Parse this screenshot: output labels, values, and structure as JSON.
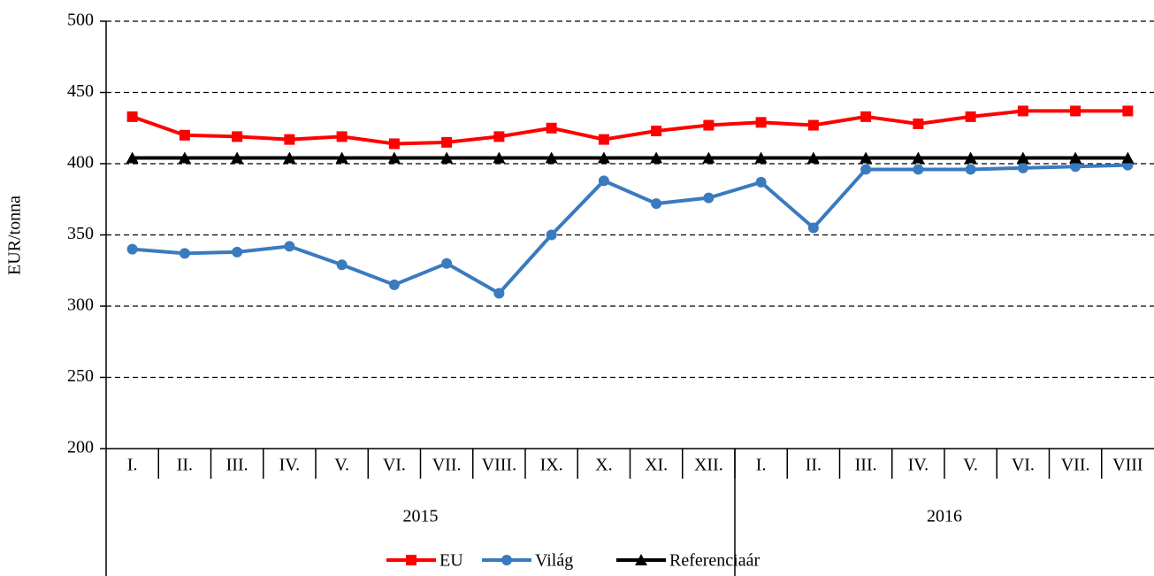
{
  "chart_data": {
    "type": "line",
    "y_label": "EUR/tonna",
    "categories": [
      "I.",
      "II.",
      "III.",
      "IV.",
      "V.",
      "VI.",
      "VII.",
      "VIII.",
      "IX.",
      "X.",
      "XI.",
      "XII.",
      "I.",
      "II.",
      "III.",
      "IV.",
      "V.",
      "VI.",
      "VII.",
      "VIII"
    ],
    "groups": [
      {
        "label": "2015",
        "span": 12
      },
      {
        "label": "2016",
        "span": 8
      }
    ],
    "series": [
      {
        "name": "EU",
        "color": "#ff0000",
        "marker": "square",
        "values": [
          433,
          420,
          419,
          417,
          419,
          414,
          415,
          419,
          425,
          417,
          423,
          427,
          429,
          427,
          433,
          428,
          433,
          437,
          437,
          437
        ]
      },
      {
        "name": "Világ",
        "color": "#3a7abf",
        "marker": "circle",
        "values": [
          340,
          337,
          338,
          342,
          329,
          315,
          330,
          309,
          350,
          388,
          372,
          376,
          387,
          355,
          396,
          396,
          396,
          397,
          398,
          399
        ]
      },
      {
        "name": "Referenciaár",
        "color": "#000000",
        "marker": "triangle",
        "values": [
          404,
          404,
          404,
          404,
          404,
          404,
          404,
          404,
          404,
          404,
          404,
          404,
          404,
          404,
          404,
          404,
          404,
          404,
          404,
          404
        ]
      }
    ],
    "ylim": [
      200,
      500
    ],
    "yticks": [
      200,
      250,
      300,
      350,
      400,
      450,
      500
    ],
    "grid": true,
    "legend": "bottom"
  }
}
